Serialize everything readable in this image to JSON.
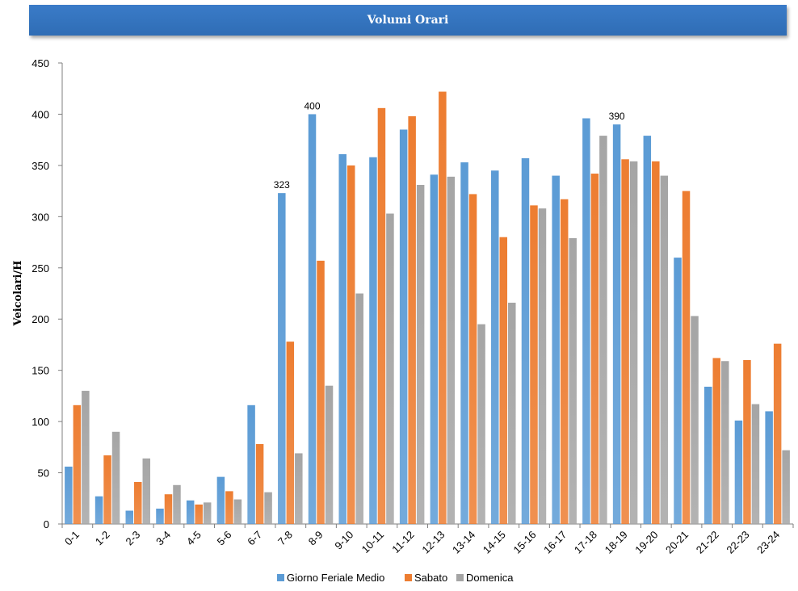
{
  "colors": {
    "series": [
      "#5b9bd5",
      "#ed7d31",
      "#a5a5a5"
    ],
    "banner": "#2f6db5"
  },
  "chart_data": {
    "type": "bar",
    "title": "Volumi Orari",
    "ylabel": "Veicolari/H",
    "xlabel": "",
    "ylim": [
      0,
      450
    ],
    "yticks": [
      0,
      50,
      100,
      150,
      200,
      250,
      300,
      350,
      400,
      450
    ],
    "grid": false,
    "legend": "bottom",
    "categories": [
      "0-1",
      "1-2",
      "2-3",
      "3-4",
      "4-5",
      "5-6",
      "6-7",
      "7-8",
      "8-9",
      "9-10",
      "10-11",
      "11-12",
      "12-13",
      "13-14",
      "14-15",
      "15-16",
      "16-17",
      "17-18",
      "18-19",
      "19-20",
      "20-21",
      "21-22",
      "22-23",
      "23-24"
    ],
    "series": [
      {
        "name": "Giorno Feriale Medio",
        "values": [
          56,
          27,
          13,
          15,
          23,
          46,
          116,
          323,
          400,
          361,
          358,
          385,
          341,
          353,
          345,
          357,
          340,
          396,
          390,
          379,
          260,
          134,
          101,
          110
        ]
      },
      {
        "name": "Sabato",
        "values": [
          116,
          67,
          41,
          29,
          19,
          32,
          78,
          178,
          257,
          350,
          406,
          398,
          422,
          322,
          280,
          311,
          317,
          342,
          356,
          354,
          325,
          162,
          160,
          176
        ]
      },
      {
        "name": "Domenica",
        "values": [
          130,
          90,
          64,
          38,
          21,
          24,
          31,
          69,
          135,
          225,
          303,
          331,
          339,
          195,
          216,
          308,
          279,
          379,
          354,
          340,
          203,
          159,
          117,
          72
        ]
      }
    ],
    "data_labels": [
      {
        "series": 0,
        "category": "7-8",
        "text": "323"
      },
      {
        "series": 0,
        "category": "8-9",
        "text": "400"
      },
      {
        "series": 0,
        "category": "18-19",
        "text": "390"
      }
    ]
  }
}
